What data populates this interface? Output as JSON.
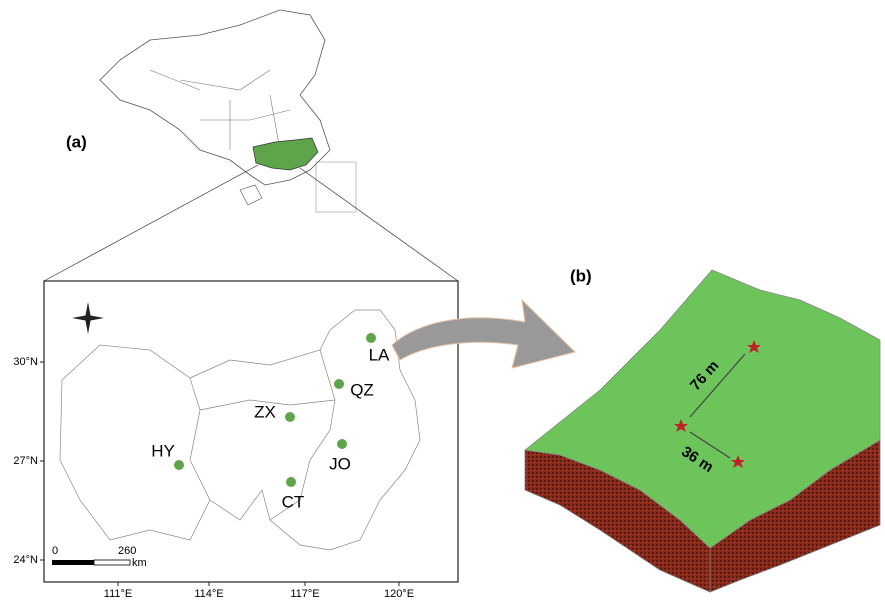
{
  "panels": {
    "a": "(a)",
    "b": "(b)"
  },
  "sites": [
    "LA",
    "QZ",
    "ZX",
    "HY",
    "JO",
    "CT"
  ],
  "x_ticks": [
    "111°E",
    "114°E",
    "117°E",
    "120°E"
  ],
  "y_ticks": [
    "30°N",
    "27°N",
    "24°N"
  ],
  "scale_bar": {
    "start": "0",
    "end": "260",
    "unit": "km"
  },
  "distances": [
    "76 m",
    "36 m"
  ]
}
